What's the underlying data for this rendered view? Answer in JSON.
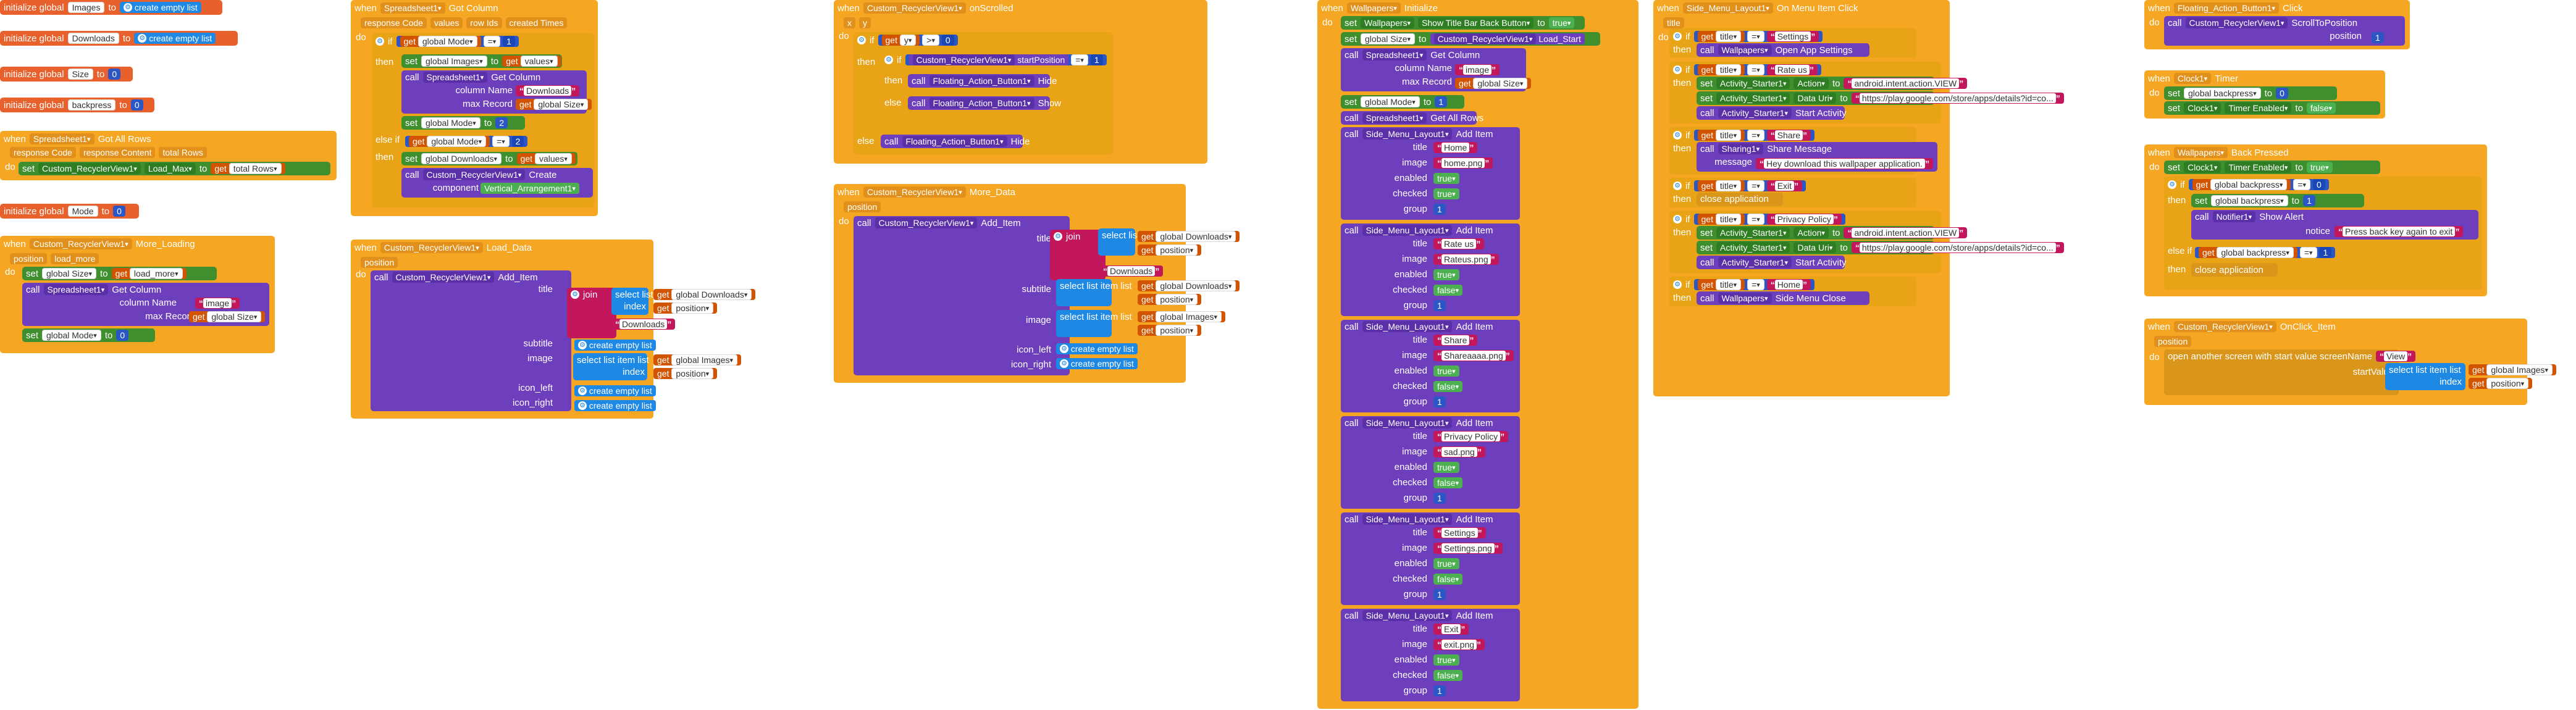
{
  "globals": [
    {
      "name": "Images",
      "value": "create empty list"
    },
    {
      "name": "Downloads",
      "value": "create empty list"
    },
    {
      "name": "Size",
      "value": "0"
    },
    {
      "name": "backpress",
      "value": "0"
    },
    {
      "name": "Mode",
      "value": "0"
    }
  ],
  "kw": {
    "initialize_global": "initialize global",
    "to": "to",
    "when": "when",
    "do": "do",
    "call": "call",
    "set": "set",
    "get": "get",
    "if": "if",
    "then": "then",
    "else": "else",
    "else_if": "else if",
    "join": "join",
    "select_list_item": "select list item  list",
    "index": "index",
    "create_empty_list": "create empty list",
    "true": "true",
    "false": "false"
  },
  "blocks": {
    "got_all_rows": {
      "component": "Spreadsheet1",
      "event": "Got All Rows",
      "params": [
        "response Code",
        "response Content",
        "total Rows"
      ],
      "set_component": "Custom_RecyclerView1",
      "set_prop": "Load_Max",
      "get_var": "total Rows"
    },
    "more_loading": {
      "component": "Custom_RecyclerView1",
      "event": "More_Loading",
      "params": [
        "position",
        "load_more"
      ],
      "set_var": "global Size",
      "get_var": "load_more",
      "call_component": "Spreadsheet1",
      "call_method": "Get Column",
      "column_label": "column Name",
      "column_value": "image",
      "max_label": "max Record",
      "max_value": "global Size",
      "set_mode": "global Mode",
      "mode_value": "0"
    },
    "got_column": {
      "component": "Spreadsheet1",
      "event": "Got Column",
      "params": [
        "response Code",
        "values",
        "row Ids",
        "created Times"
      ],
      "if_var": "global Mode",
      "op": "=",
      "num1": "1",
      "set_images": "global Images",
      "get_values": "values",
      "call_component": "Spreadsheet1",
      "call_method": "Get Column",
      "column_label": "column Name",
      "column_value": "Downloads",
      "max_label": "max Record",
      "max_value": "global Size",
      "set_mode": "global Mode",
      "mode_value": "2",
      "elseif_var": "global Mode",
      "num2": "2",
      "set_downloads": "global Downloads",
      "create_comp": "Custom_RecyclerView1",
      "create_method": "Create",
      "component_label": "component",
      "component_value": "Vertical_Arrangement1"
    },
    "load_data": {
      "component": "Custom_RecyclerView1",
      "event": "Load_Data",
      "params": [
        "position"
      ],
      "call_component": "Custom_RecyclerView1",
      "call_method": "Add_Item",
      "title": "title",
      "subtitle": "subtitle",
      "image": "image",
      "icon_left": "icon_left",
      "icon_right": "icon_right",
      "downloads_var": "global Downloads",
      "position_var": "position",
      "downloads_text": "Downloads",
      "images_var": "global Images"
    },
    "on_scrolled": {
      "component": "Custom_RecyclerView1",
      "event": "onScrolled",
      "params": [
        "x",
        "y"
      ],
      "get_y": "y",
      "op": ">",
      "num": "0",
      "start_pos": "startPosition",
      "op2": "=",
      "num2": "1",
      "fab": "Floating_Action_Button1",
      "hide": "Hide",
      "show": "Show"
    },
    "more_data": {
      "component": "Custom_RecyclerView1",
      "event": "More_Data",
      "params": [
        "position"
      ],
      "call_component": "Custom_RecyclerView1",
      "call_method": "Add_Item",
      "title": "title",
      "subtitle": "subtitle",
      "image": "image",
      "icon_left": "icon_left",
      "icon_right": "icon_right",
      "downloads_var": "global Downloads",
      "position_var": "position",
      "downloads_text": "Downloads",
      "images_var": "global Images"
    },
    "wallpapers_init": {
      "component": "Wallpapers",
      "event": "Initialize",
      "set_component": "Wallpapers",
      "set_prop": "Show Title Bar Back Button",
      "set_size": "global Size",
      "size_comp": "Custom_RecyclerView1",
      "size_prop": "Load_Start",
      "call_component": "Spreadsheet1",
      "call_method": "Get Column",
      "column_label": "column Name",
      "column_value": "image",
      "max_label": "max Record",
      "max_value": "global Size",
      "set_mode": "global Mode",
      "mode_value": "1",
      "get_all_rows": "Get All Rows",
      "menu_comp": "Side_Menu_Layout1",
      "menu_method": "Add Item",
      "labels": {
        "title": "title",
        "image": "image",
        "enabled": "enabled",
        "checked": "checked",
        "group": "group"
      },
      "items": [
        {
          "title": "Home",
          "image": "home.png",
          "enabled": "true",
          "checked": "true",
          "group": "1"
        },
        {
          "title": "Rate us",
          "image": "Rateus.png",
          "enabled": "true",
          "checked": "false",
          "group": "1"
        },
        {
          "title": "Share",
          "image": "Shareaaaa.png",
          "enabled": "true",
          "checked": "false",
          "group": "1"
        },
        {
          "title": "Privacy Policy",
          "image": "sad.png",
          "enabled": "true",
          "checked": "false",
          "group": "1"
        },
        {
          "title": "Settings",
          "image": "Settings.png",
          "enabled": "true",
          "checked": "false",
          "group": "1"
        },
        {
          "title": "Exit",
          "image": "exit.png",
          "enabled": "true",
          "checked": "false",
          "group": "1"
        }
      ]
    },
    "menu_click": {
      "component": "Side_Menu_Layout1",
      "event": "On Menu Item Click",
      "params": [
        "title"
      ],
      "cases": [
        {
          "title": "Settings",
          "action": "call",
          "comp": "Wallpapers",
          "method": "Open App Settings"
        },
        {
          "title": "Rate us",
          "action": "rate",
          "act_comp": "Activity_Starter1",
          "action_label": "Action",
          "action_val": "android.intent.action.VIEW",
          "data_label": "Data Uri",
          "data_val": "https://play.google.com/store/apps/details?id=co...",
          "start": "Start Activity"
        },
        {
          "title": "Share",
          "action": "share",
          "comp": "Sharing1",
          "method": "Share Message",
          "msg_label": "message",
          "msg_val": "Hey download this wallpaper application."
        },
        {
          "title": "Exit",
          "action": "close",
          "close": "close application"
        },
        {
          "title": "Privacy Policy",
          "action": "rate",
          "act_comp": "Activity_Starter1",
          "action_label": "Action",
          "action_val": "android.intent.action.VIEW",
          "data_label": "Data Uri",
          "data_val": "https://play.google.com/store/apps/details?id=co...",
          "start": "Start Activity"
        },
        {
          "title": "Home",
          "action": "call",
          "comp": "Wallpapers",
          "method": "Side Menu Close"
        }
      ]
    },
    "fab_click": {
      "component": "Floating_Action_Button1",
      "event": "Click",
      "call_component": "Custom_RecyclerView1",
      "call_method": "ScrollToPosition",
      "pos_label": "position",
      "pos_value": "1"
    },
    "clock_timer": {
      "component": "Clock1",
      "event": "Timer",
      "set_var": "global backpress",
      "set_val": "0",
      "set_comp": "Clock1",
      "set_prop": "Timer Enabled",
      "set_prop_val": "false"
    },
    "back_pressed": {
      "component": "Wallpapers",
      "event": "Back Pressed",
      "set_comp": "Clock1",
      "set_prop": "Timer Enabled",
      "set_prop_val": "true",
      "if_var": "global backpress",
      "op": "=",
      "num": "0",
      "set_var": "global backpress",
      "set_val": "1",
      "notifier": "Notifier1",
      "notifier_method": "Show Alert",
      "notice_label": "notice",
      "notice_val": "Press back key again to exit",
      "elseif_var": "global backpress",
      "num2": "1",
      "close": "close application"
    },
    "onclick_item": {
      "component": "Custom_RecyclerView1",
      "event": "OnClick_Item",
      "params": [
        "position"
      ],
      "open": "open another screen with start value  screenName",
      "screen": "View",
      "start_label": "startValue",
      "images_var": "global Images",
      "position_var": "position"
    }
  }
}
